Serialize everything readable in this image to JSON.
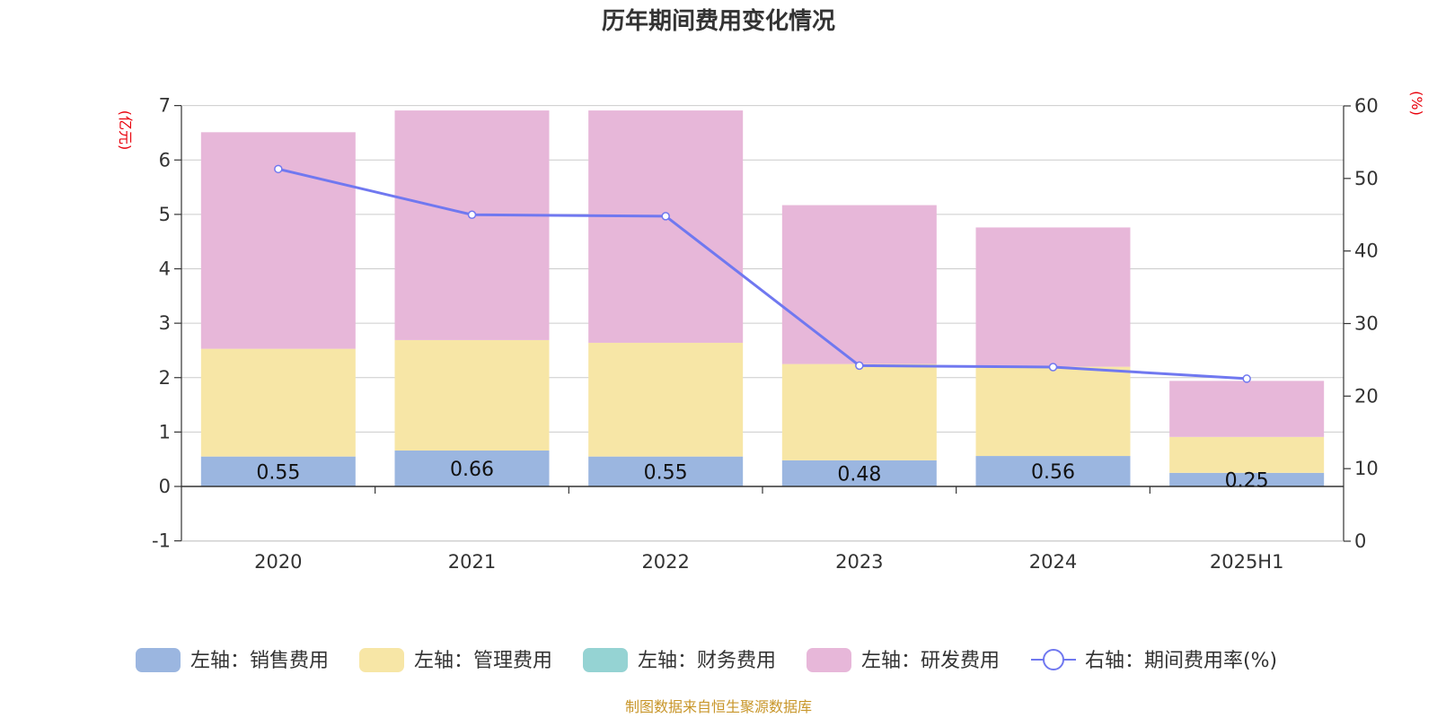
{
  "chart_data": {
    "type": "bar",
    "stacked": true,
    "title": "历年期间费用变化情况",
    "categories": [
      "2020",
      "2021",
      "2022",
      "2023",
      "2024",
      "2025H1"
    ],
    "y_left": {
      "unit_label": "(亿元)",
      "range": [
        -1,
        7
      ],
      "ticks": [
        "-1",
        "0",
        "1",
        "2",
        "3",
        "4",
        "5",
        "6",
        "7"
      ]
    },
    "y_right": {
      "unit_label": "(%)",
      "range": [
        0,
        60
      ],
      "ticks": [
        "0",
        "10",
        "20",
        "30",
        "40",
        "50",
        "60"
      ]
    },
    "series": [
      {
        "name": "左轴：销售费用",
        "axis": "left",
        "kind": "bar",
        "color": "#9bb6e0",
        "values": [
          0.55,
          0.66,
          0.55,
          0.48,
          0.56,
          0.25
        ],
        "labels": [
          "0.55",
          "0.66",
          "0.55",
          "0.48",
          "0.56",
          "0.25"
        ]
      },
      {
        "name": "左轴：管理费用",
        "axis": "left",
        "kind": "bar",
        "color": "#f7e6a6",
        "values": [
          1.98,
          2.03,
          2.09,
          1.77,
          1.64,
          0.66
        ]
      },
      {
        "name": "左轴：财务费用",
        "axis": "left",
        "kind": "bar",
        "color": "#95d3d3",
        "values": [
          0,
          0,
          0,
          0,
          0,
          0
        ]
      },
      {
        "name": "左轴：研发费用",
        "axis": "left",
        "kind": "bar",
        "color": "#e7b7d9",
        "values": [
          3.98,
          4.22,
          4.27,
          2.92,
          2.56,
          1.03
        ]
      },
      {
        "name": "右轴：期间费用率(%)",
        "axis": "right",
        "kind": "line",
        "color": "#7078f0",
        "values": [
          51.3,
          45.0,
          44.8,
          24.2,
          24.0,
          22.4
        ]
      }
    ],
    "grid": true,
    "legend_position": "bottom"
  },
  "footer": {
    "source": "制图数据来自恒生聚源数据库"
  }
}
